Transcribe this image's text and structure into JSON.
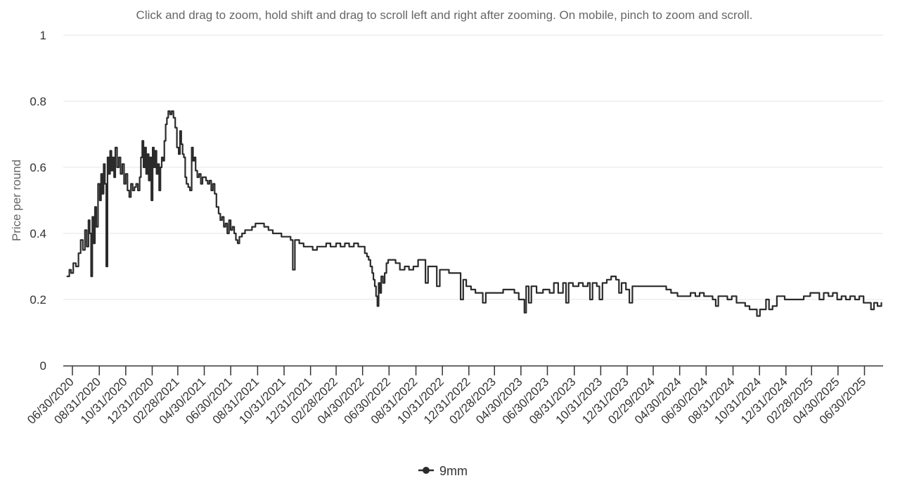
{
  "chart_data": {
    "type": "line",
    "title": "",
    "subtitle": "Click and drag to zoom, hold shift and drag to scroll left and right after zooming. On mobile, pinch to zoom and scroll.",
    "xlabel": "",
    "ylabel": "Price per round",
    "ylim": [
      0,
      1
    ],
    "yticks": [
      "0",
      "0.2",
      "0.4",
      "0.6",
      "0.8",
      "1"
    ],
    "grid": true,
    "legend_position": "bottom-center",
    "x_type": "date",
    "xlim": [
      "2020-06-09",
      "2025-08-12"
    ],
    "xticks": [
      "06/30/2020",
      "08/31/2020",
      "10/31/2020",
      "12/31/2020",
      "02/28/2021",
      "04/30/2021",
      "06/30/2021",
      "08/31/2021",
      "10/31/2021",
      "12/31/2021",
      "02/28/2022",
      "04/30/2022",
      "06/30/2022",
      "08/31/2022",
      "10/31/2022",
      "12/31/2022",
      "02/28/2023",
      "04/30/2023",
      "06/30/2023",
      "08/31/2023",
      "10/31/2023",
      "12/31/2023",
      "02/29/2024",
      "04/30/2024",
      "06/30/2024",
      "08/31/2024",
      "10/31/2024",
      "12/31/2024",
      "02/28/2025",
      "04/30/2025",
      "06/30/2025"
    ],
    "series": [
      {
        "name": "9mm",
        "color": "#2b2b2b",
        "points": [
          [
            "2020-06-18",
            0.27
          ],
          [
            "2020-06-23",
            0.29
          ],
          [
            "2020-06-27",
            0.28
          ],
          [
            "2020-07-02",
            0.31
          ],
          [
            "2020-07-08",
            0.3
          ],
          [
            "2020-07-14",
            0.34
          ],
          [
            "2020-07-19",
            0.38
          ],
          [
            "2020-07-24",
            0.35
          ],
          [
            "2020-07-29",
            0.41
          ],
          [
            "2020-08-02",
            0.36
          ],
          [
            "2020-08-06",
            0.44
          ],
          [
            "2020-08-09",
            0.4
          ],
          [
            "2020-08-12",
            0.27
          ],
          [
            "2020-08-15",
            0.45
          ],
          [
            "2020-08-18",
            0.37
          ],
          [
            "2020-08-21",
            0.48
          ],
          [
            "2020-08-24",
            0.42
          ],
          [
            "2020-08-28",
            0.55
          ],
          [
            "2020-09-01",
            0.5
          ],
          [
            "2020-09-04",
            0.58
          ],
          [
            "2020-09-07",
            0.52
          ],
          [
            "2020-09-10",
            0.61
          ],
          [
            "2020-09-13",
            0.55
          ],
          [
            "2020-09-16",
            0.3
          ],
          [
            "2020-09-19",
            0.63
          ],
          [
            "2020-09-22",
            0.58
          ],
          [
            "2020-09-25",
            0.65
          ],
          [
            "2020-09-28",
            0.59
          ],
          [
            "2020-10-01",
            0.63
          ],
          [
            "2020-10-04",
            0.57
          ],
          [
            "2020-10-07",
            0.66
          ],
          [
            "2020-10-11",
            0.6
          ],
          [
            "2020-10-15",
            0.63
          ],
          [
            "2020-10-19",
            0.58
          ],
          [
            "2020-10-23",
            0.61
          ],
          [
            "2020-10-27",
            0.55
          ],
          [
            "2020-10-31",
            0.58
          ],
          [
            "2020-11-04",
            0.53
          ],
          [
            "2020-11-08",
            0.51
          ],
          [
            "2020-11-12",
            0.55
          ],
          [
            "2020-11-16",
            0.53
          ],
          [
            "2020-11-20",
            0.54
          ],
          [
            "2020-11-24",
            0.55
          ],
          [
            "2020-11-28",
            0.53
          ],
          [
            "2020-12-02",
            0.57
          ],
          [
            "2020-12-05",
            0.63
          ],
          [
            "2020-12-08",
            0.68
          ],
          [
            "2020-12-11",
            0.6
          ],
          [
            "2020-12-14",
            0.66
          ],
          [
            "2020-12-17",
            0.58
          ],
          [
            "2020-12-20",
            0.64
          ],
          [
            "2020-12-23",
            0.56
          ],
          [
            "2020-12-26",
            0.63
          ],
          [
            "2020-12-29",
            0.5
          ],
          [
            "2021-01-01",
            0.66
          ],
          [
            "2021-01-04",
            0.6
          ],
          [
            "2021-01-07",
            0.65
          ],
          [
            "2021-01-10",
            0.58
          ],
          [
            "2021-01-13",
            0.61
          ],
          [
            "2021-01-16",
            0.53
          ],
          [
            "2021-01-19",
            0.6
          ],
          [
            "2021-01-22",
            0.63
          ],
          [
            "2021-01-25",
            0.62
          ],
          [
            "2021-01-28",
            0.68
          ],
          [
            "2021-01-31",
            0.73
          ],
          [
            "2021-02-03",
            0.75
          ],
          [
            "2021-02-06",
            0.77
          ],
          [
            "2021-02-10",
            0.76
          ],
          [
            "2021-02-14",
            0.77
          ],
          [
            "2021-02-18",
            0.75
          ],
          [
            "2021-02-22",
            0.72
          ],
          [
            "2021-02-26",
            0.66
          ],
          [
            "2021-03-02",
            0.64
          ],
          [
            "2021-03-05",
            0.71
          ],
          [
            "2021-03-08",
            0.67
          ],
          [
            "2021-03-11",
            0.64
          ],
          [
            "2021-03-14",
            0.63
          ],
          [
            "2021-03-17",
            0.57
          ],
          [
            "2021-03-20",
            0.55
          ],
          [
            "2021-03-24",
            0.54
          ],
          [
            "2021-03-28",
            0.53
          ],
          [
            "2021-04-01",
            0.66
          ],
          [
            "2021-04-04",
            0.62
          ],
          [
            "2021-04-07",
            0.63
          ],
          [
            "2021-04-10",
            0.59
          ],
          [
            "2021-04-14",
            0.57
          ],
          [
            "2021-04-18",
            0.58
          ],
          [
            "2021-04-22",
            0.55
          ],
          [
            "2021-04-26",
            0.57
          ],
          [
            "2021-04-30",
            0.57
          ],
          [
            "2021-05-04",
            0.56
          ],
          [
            "2021-05-08",
            0.55
          ],
          [
            "2021-05-12",
            0.56
          ],
          [
            "2021-05-16",
            0.53
          ],
          [
            "2021-05-20",
            0.55
          ],
          [
            "2021-05-24",
            0.52
          ],
          [
            "2021-05-28",
            0.48
          ],
          [
            "2021-06-02",
            0.46
          ],
          [
            "2021-06-06",
            0.44
          ],
          [
            "2021-06-10",
            0.45
          ],
          [
            "2021-06-14",
            0.42
          ],
          [
            "2021-06-18",
            0.43
          ],
          [
            "2021-06-22",
            0.4
          ],
          [
            "2021-06-26",
            0.44
          ],
          [
            "2021-06-30",
            0.41
          ],
          [
            "2021-07-04",
            0.42
          ],
          [
            "2021-07-08",
            0.4
          ],
          [
            "2021-07-12",
            0.38
          ],
          [
            "2021-07-16",
            0.37
          ],
          [
            "2021-07-20",
            0.39
          ],
          [
            "2021-07-26",
            0.4
          ],
          [
            "2021-08-02",
            0.41
          ],
          [
            "2021-08-10",
            0.41
          ],
          [
            "2021-08-18",
            0.42
          ],
          [
            "2021-08-26",
            0.43
          ],
          [
            "2021-09-05",
            0.43
          ],
          [
            "2021-09-15",
            0.42
          ],
          [
            "2021-09-25",
            0.41
          ],
          [
            "2021-10-05",
            0.4
          ],
          [
            "2021-10-15",
            0.4
          ],
          [
            "2021-10-25",
            0.39
          ],
          [
            "2021-11-05",
            0.39
          ],
          [
            "2021-11-15",
            0.38
          ],
          [
            "2021-11-20",
            0.29
          ],
          [
            "2021-11-25",
            0.38
          ],
          [
            "2021-12-05",
            0.37
          ],
          [
            "2021-12-15",
            0.36
          ],
          [
            "2021-12-25",
            0.36
          ],
          [
            "2022-01-05",
            0.35
          ],
          [
            "2022-01-15",
            0.36
          ],
          [
            "2022-01-25",
            0.36
          ],
          [
            "2022-02-05",
            0.37
          ],
          [
            "2022-02-15",
            0.36
          ],
          [
            "2022-02-28",
            0.37
          ],
          [
            "2022-03-10",
            0.36
          ],
          [
            "2022-03-20",
            0.37
          ],
          [
            "2022-03-30",
            0.36
          ],
          [
            "2022-04-10",
            0.37
          ],
          [
            "2022-04-20",
            0.36
          ],
          [
            "2022-04-30",
            0.36
          ],
          [
            "2022-05-05",
            0.34
          ],
          [
            "2022-05-10",
            0.33
          ],
          [
            "2022-05-14",
            0.32
          ],
          [
            "2022-05-18",
            0.3
          ],
          [
            "2022-05-22",
            0.28
          ],
          [
            "2022-05-25",
            0.26
          ],
          [
            "2022-05-28",
            0.24
          ],
          [
            "2022-05-31",
            0.21
          ],
          [
            "2022-06-03",
            0.18
          ],
          [
            "2022-06-06",
            0.25
          ],
          [
            "2022-06-09",
            0.22
          ],
          [
            "2022-06-12",
            0.27
          ],
          [
            "2022-06-16",
            0.25
          ],
          [
            "2022-06-20",
            0.28
          ],
          [
            "2022-06-24",
            0.31
          ],
          [
            "2022-06-28",
            0.32
          ],
          [
            "2022-07-05",
            0.32
          ],
          [
            "2022-07-15",
            0.31
          ],
          [
            "2022-07-25",
            0.29
          ],
          [
            "2022-08-05",
            0.3
          ],
          [
            "2022-08-15",
            0.29
          ],
          [
            "2022-08-25",
            0.3
          ],
          [
            "2022-09-05",
            0.32
          ],
          [
            "2022-09-15",
            0.32
          ],
          [
            "2022-09-22",
            0.25
          ],
          [
            "2022-09-28",
            0.3
          ],
          [
            "2022-10-10",
            0.3
          ],
          [
            "2022-10-18",
            0.24
          ],
          [
            "2022-10-25",
            0.29
          ],
          [
            "2022-11-05",
            0.29
          ],
          [
            "2022-11-15",
            0.28
          ],
          [
            "2022-11-25",
            0.28
          ],
          [
            "2022-12-05",
            0.28
          ],
          [
            "2022-12-12",
            0.2
          ],
          [
            "2022-12-18",
            0.26
          ],
          [
            "2022-12-25",
            0.24
          ],
          [
            "2023-01-05",
            0.23
          ],
          [
            "2023-01-15",
            0.22
          ],
          [
            "2023-01-25",
            0.22
          ],
          [
            "2023-02-01",
            0.19
          ],
          [
            "2023-02-08",
            0.22
          ],
          [
            "2023-02-20",
            0.22
          ],
          [
            "2023-03-05",
            0.22
          ],
          [
            "2023-03-20",
            0.23
          ],
          [
            "2023-04-05",
            0.23
          ],
          [
            "2023-04-15",
            0.22
          ],
          [
            "2023-04-25",
            0.2
          ],
          [
            "2023-05-02",
            0.2
          ],
          [
            "2023-05-08",
            0.16
          ],
          [
            "2023-05-12",
            0.24
          ],
          [
            "2023-05-18",
            0.19
          ],
          [
            "2023-05-24",
            0.24
          ],
          [
            "2023-06-05",
            0.22
          ],
          [
            "2023-06-20",
            0.23
          ],
          [
            "2023-07-05",
            0.22
          ],
          [
            "2023-07-15",
            0.25
          ],
          [
            "2023-07-25",
            0.22
          ],
          [
            "2023-08-05",
            0.25
          ],
          [
            "2023-08-12",
            0.19
          ],
          [
            "2023-08-18",
            0.25
          ],
          [
            "2023-08-28",
            0.24
          ],
          [
            "2023-09-10",
            0.25
          ],
          [
            "2023-09-20",
            0.24
          ],
          [
            "2023-10-01",
            0.25
          ],
          [
            "2023-10-06",
            0.2
          ],
          [
            "2023-10-12",
            0.25
          ],
          [
            "2023-10-22",
            0.24
          ],
          [
            "2023-10-28",
            0.2
          ],
          [
            "2023-11-04",
            0.25
          ],
          [
            "2023-11-14",
            0.26
          ],
          [
            "2023-11-24",
            0.27
          ],
          [
            "2023-12-05",
            0.26
          ],
          [
            "2023-12-12",
            0.22
          ],
          [
            "2023-12-18",
            0.25
          ],
          [
            "2023-12-28",
            0.23
          ],
          [
            "2024-01-05",
            0.19
          ],
          [
            "2024-01-12",
            0.24
          ],
          [
            "2024-01-25",
            0.24
          ],
          [
            "2024-02-10",
            0.24
          ],
          [
            "2024-02-28",
            0.24
          ],
          [
            "2024-03-15",
            0.24
          ],
          [
            "2024-03-30",
            0.23
          ],
          [
            "2024-04-10",
            0.22
          ],
          [
            "2024-04-25",
            0.21
          ],
          [
            "2024-05-10",
            0.21
          ],
          [
            "2024-05-25",
            0.22
          ],
          [
            "2024-06-05",
            0.21
          ],
          [
            "2024-06-15",
            0.22
          ],
          [
            "2024-06-25",
            0.21
          ],
          [
            "2024-07-05",
            0.21
          ],
          [
            "2024-07-15",
            0.2
          ],
          [
            "2024-07-22",
            0.18
          ],
          [
            "2024-07-28",
            0.21
          ],
          [
            "2024-08-08",
            0.21
          ],
          [
            "2024-08-18",
            0.2
          ],
          [
            "2024-08-28",
            0.21
          ],
          [
            "2024-09-08",
            0.19
          ],
          [
            "2024-09-18",
            0.19
          ],
          [
            "2024-09-28",
            0.18
          ],
          [
            "2024-10-08",
            0.17
          ],
          [
            "2024-10-18",
            0.17
          ],
          [
            "2024-10-25",
            0.15
          ],
          [
            "2024-11-01",
            0.17
          ],
          [
            "2024-11-08",
            0.17
          ],
          [
            "2024-11-15",
            0.2
          ],
          [
            "2024-11-22",
            0.17
          ],
          [
            "2024-11-30",
            0.18
          ],
          [
            "2024-12-10",
            0.21
          ],
          [
            "2024-12-20",
            0.21
          ],
          [
            "2024-12-28",
            0.2
          ],
          [
            "2025-01-10",
            0.2
          ],
          [
            "2025-01-25",
            0.2
          ],
          [
            "2025-02-10",
            0.21
          ],
          [
            "2025-02-25",
            0.22
          ],
          [
            "2025-03-08",
            0.22
          ],
          [
            "2025-03-18",
            0.2
          ],
          [
            "2025-03-28",
            0.22
          ],
          [
            "2025-04-08",
            0.21
          ],
          [
            "2025-04-18",
            0.22
          ],
          [
            "2025-04-28",
            0.2
          ],
          [
            "2025-05-08",
            0.21
          ],
          [
            "2025-05-18",
            0.2
          ],
          [
            "2025-05-28",
            0.21
          ],
          [
            "2025-06-08",
            0.2
          ],
          [
            "2025-06-18",
            0.21
          ],
          [
            "2025-06-28",
            0.19
          ],
          [
            "2025-07-08",
            0.19
          ],
          [
            "2025-07-15",
            0.17
          ],
          [
            "2025-07-22",
            0.19
          ],
          [
            "2025-07-30",
            0.18
          ],
          [
            "2025-08-08",
            0.19
          ]
        ]
      }
    ]
  }
}
